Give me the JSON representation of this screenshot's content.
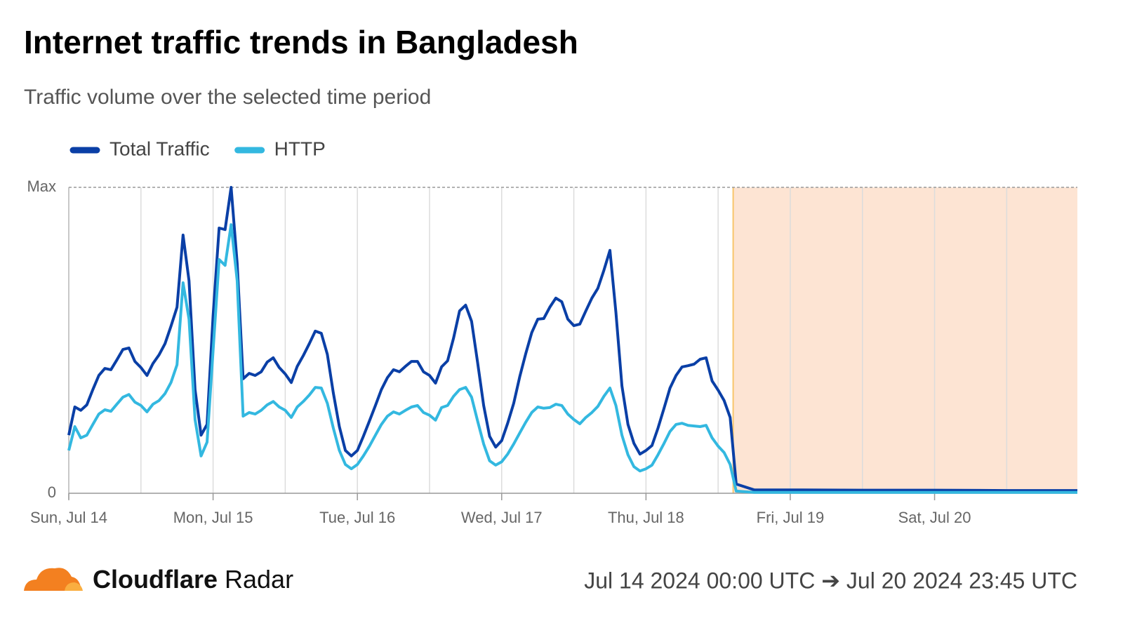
{
  "chart_data": {
    "type": "line",
    "title": "Internet traffic trends in Bangladesh",
    "subtitle": "Traffic volume over the selected time period",
    "x": [
      0,
      1,
      2,
      3,
      4,
      5,
      6,
      7,
      8,
      9,
      10,
      11,
      12,
      13,
      14,
      15,
      16,
      17,
      18,
      19,
      20,
      21,
      22,
      23,
      24,
      25,
      26,
      27,
      28,
      29,
      30,
      31,
      32,
      33,
      34,
      35,
      36,
      37,
      38,
      39,
      40,
      41,
      42,
      43,
      44,
      45,
      46,
      47,
      48,
      49,
      50,
      51,
      52,
      53,
      54,
      55,
      56,
      57,
      58,
      59,
      60,
      61,
      62,
      63,
      64,
      65,
      66,
      67,
      68,
      69,
      70,
      71,
      72,
      73,
      74,
      75,
      76,
      77,
      78,
      79,
      80,
      81,
      82,
      83,
      84,
      85,
      86,
      87,
      88,
      89,
      90,
      91,
      92,
      93,
      94,
      95,
      96,
      97,
      98,
      99,
      100,
      101,
      102,
      103,
      104,
      105,
      106,
      107,
      108,
      109,
      110,
      111,
      114,
      120,
      132,
      144,
      156,
      167.75
    ],
    "series": [
      {
        "name": "Total Traffic",
        "color": "#0a3fa6",
        "values": [
          19.0,
          28.2,
          27.1,
          28.9,
          33.9,
          38.5,
          40.8,
          40.4,
          43.6,
          47.0,
          47.5,
          43.1,
          41.1,
          38.5,
          42.4,
          45.2,
          48.9,
          54.6,
          60.8,
          84.4,
          69.5,
          33.9,
          19.0,
          22.5,
          58.0,
          86.7,
          86.2,
          100,
          75.2,
          37.4,
          39.2,
          38.5,
          39.7,
          42.9,
          44.3,
          41.1,
          39.0,
          36.2,
          41.5,
          45.0,
          48.9,
          53.0,
          52.3,
          45.4,
          32.8,
          21.8,
          14.0,
          12.2,
          14.0,
          18.6,
          23.6,
          28.7,
          33.9,
          37.8,
          40.4,
          39.7,
          41.5,
          43.1,
          43.1,
          39.7,
          38.5,
          36.0,
          41.3,
          43.3,
          50.7,
          59.6,
          61.5,
          56.2,
          42.7,
          28.7,
          18.6,
          15.1,
          17.2,
          22.9,
          29.4,
          38.1,
          45.6,
          52.5,
          56.9,
          57.1,
          60.8,
          63.8,
          62.6,
          56.9,
          54.8,
          55.3,
          59.6,
          63.8,
          67.0,
          72.9,
          79.4,
          59.2,
          35.1,
          22.5,
          16.3,
          12.8,
          14.0,
          15.6,
          21.3,
          27.8,
          34.4,
          38.5,
          41.3,
          41.7,
          42.2,
          43.8,
          44.3,
          36.7,
          33.7,
          30.3,
          24.8,
          3.0,
          1.1,
          1.1,
          1.0,
          1.0,
          0.9,
          0.9
        ]
      },
      {
        "name": "HTTP",
        "color": "#33b8e0",
        "values": [
          14.0,
          21.8,
          18.1,
          19.0,
          22.5,
          25.9,
          27.3,
          26.8,
          29.1,
          31.4,
          32.3,
          29.8,
          28.7,
          26.6,
          29.1,
          30.3,
          32.6,
          36.2,
          42.0,
          68.8,
          56.9,
          24.1,
          12.2,
          16.7,
          46.6,
          76.4,
          74.5,
          87.8,
          69.5,
          25.2,
          26.4,
          25.9,
          27.1,
          28.9,
          30.0,
          28.2,
          27.1,
          24.8,
          28.2,
          30.0,
          32.1,
          34.6,
          34.4,
          29.4,
          21.3,
          14.0,
          9.4,
          8.0,
          9.4,
          12.2,
          15.4,
          19.0,
          22.5,
          25.2,
          26.6,
          25.9,
          27.1,
          28.2,
          28.7,
          26.4,
          25.5,
          23.9,
          28.0,
          28.7,
          31.7,
          33.9,
          34.6,
          31.4,
          23.6,
          16.1,
          10.6,
          9.2,
          10.3,
          12.8,
          16.1,
          19.7,
          23.2,
          26.4,
          28.2,
          27.8,
          28.0,
          29.1,
          28.7,
          25.9,
          24.1,
          22.7,
          24.8,
          26.4,
          28.4,
          31.7,
          34.4,
          28.7,
          19.0,
          12.6,
          8.7,
          7.3,
          8.0,
          9.2,
          12.6,
          16.3,
          20.2,
          22.5,
          22.9,
          22.2,
          22.0,
          21.8,
          22.2,
          18.1,
          15.4,
          13.3,
          9.4,
          0.7,
          0.3,
          0.3,
          0.3,
          0.3,
          0.3,
          0.3
        ]
      }
    ],
    "xlim": [
      0,
      167.75
    ],
    "xticks": [
      {
        "value": 0,
        "label": "Sun, Jul 14"
      },
      {
        "value": 24,
        "label": "Mon, Jul 15"
      },
      {
        "value": 48,
        "label": "Tue, Jul 16"
      },
      {
        "value": 72,
        "label": "Wed, Jul 17"
      },
      {
        "value": 96,
        "label": "Thu, Jul 18"
      },
      {
        "value": 120,
        "label": "Fri, Jul 19"
      },
      {
        "value": 144,
        "label": "Sat, Jul 20"
      }
    ],
    "ylim": [
      0,
      100
    ],
    "yticks": [
      0,
      {
        "value": 100,
        "label": "Max"
      }
    ],
    "grid": true,
    "highlight": {
      "from": 110.5,
      "to": 167.75,
      "color": "#fde4d3",
      "edge_color": "#f8c66b"
    },
    "legend": "top-left",
    "footer": {
      "brand_bold": "Cloudflare",
      "brand": "Radar",
      "range": "Jul 14 2024 00:00 UTC ➔ Jul 20 2024 23:45 UTC"
    }
  }
}
